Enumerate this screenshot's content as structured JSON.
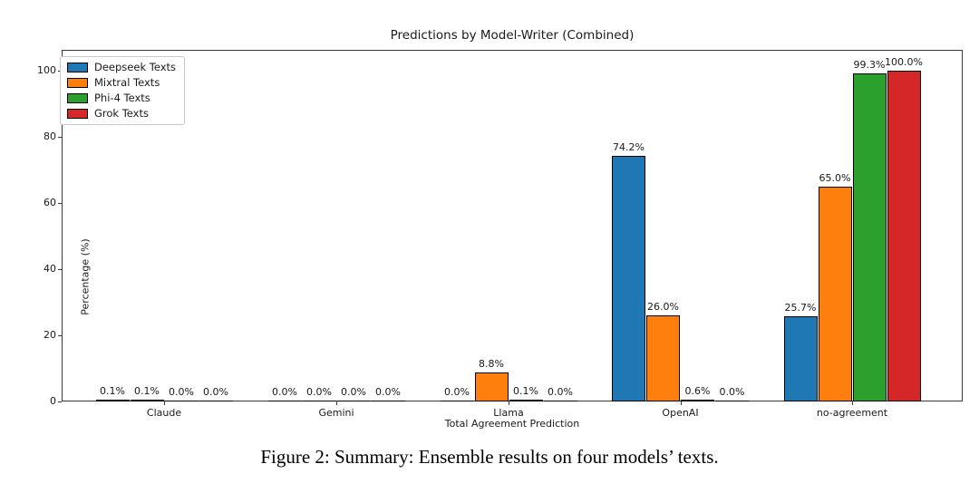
{
  "figure": {
    "caption": "Figure 2: Summary: Ensemble results on four models’ texts."
  },
  "chart_data": {
    "type": "bar",
    "title": "Predictions by Model-Writer (Combined)",
    "xlabel": "Total Agreement Prediction",
    "ylabel": "Percentage (%)",
    "categories": [
      "Claude",
      "Gemini",
      "Llama",
      "OpenAI",
      "no-agreement"
    ],
    "series": [
      {
        "name": "Deepseek Texts",
        "color": "#1f77b4",
        "values": [
          0.1,
          0.0,
          0.0,
          74.2,
          25.7
        ]
      },
      {
        "name": "Mixtral Texts",
        "color": "#ff7f0e",
        "values": [
          0.1,
          0.0,
          8.8,
          26.0,
          65.0
        ]
      },
      {
        "name": "Phi-4 Texts",
        "color": "#2ca02c",
        "values": [
          0.0,
          0.0,
          0.1,
          0.6,
          99.3
        ]
      },
      {
        "name": "Grok Texts",
        "color": "#d62728",
        "values": [
          0.0,
          0.0,
          0.0,
          0.0,
          100.0
        ]
      }
    ],
    "value_labels": [
      [
        "0.1%",
        "0.0%",
        "0.0%",
        "74.2%",
        "25.7%"
      ],
      [
        "0.1%",
        "0.0%",
        "8.8%",
        "26.0%",
        "65.0%"
      ],
      [
        "0.0%",
        "0.0%",
        "0.1%",
        "0.6%",
        "99.3%"
      ],
      [
        "0.0%",
        "0.0%",
        "0.0%",
        "0.0%",
        "100.0%"
      ]
    ],
    "ylim": [
      0,
      106.3
    ],
    "yticks": [
      0,
      20,
      40,
      60,
      80,
      100
    ],
    "grid": false,
    "legend_position": "upper-left",
    "bar_edge_color": "#000000",
    "background_color": "#ffffff"
  }
}
